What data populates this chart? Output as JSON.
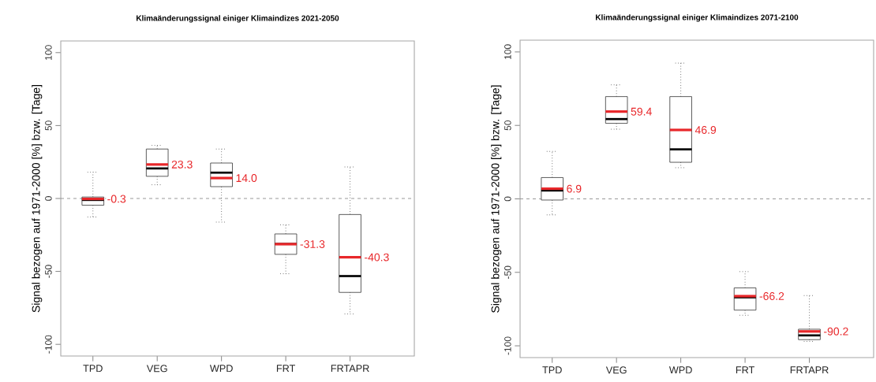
{
  "chart_data": [
    {
      "type": "box",
      "title": "Klimaänderungssignal einiger Klimaindizes 2021-2050",
      "ylabel": "Signal bezogen auf 1971-2000 [%] bzw. [Tage]",
      "categories": [
        "TPD",
        "VEG",
        "WPD",
        "FRT",
        "FRTAPR"
      ],
      "boxes": [
        {
          "low": -12.7,
          "q1": -4.6,
          "median": -1.0,
          "q3": 1.0,
          "high": 18,
          "mean": -0.3
        },
        {
          "low": 9.4,
          "q1": 15.2,
          "median": 20.6,
          "q3": 33.9,
          "high": 36.4,
          "mean": 23.3
        },
        {
          "low": -16.2,
          "q1": 8.1,
          "median": 17.7,
          "q3": 24.3,
          "high": 33.9,
          "mean": 14.0
        },
        {
          "low": -51.6,
          "q1": -38.3,
          "median": -31.2,
          "q3": -24.3,
          "high": -18.1,
          "mean": -31.3
        },
        {
          "low": -79.2,
          "q1": -64.4,
          "median": -53.2,
          "q3": -11.0,
          "high": 21.6,
          "mean": -40.3
        }
      ],
      "ylim": [
        -108,
        108
      ],
      "yticks": [
        -100,
        -50,
        0,
        50,
        100
      ],
      "ref_lines": [
        {
          "axis": "y",
          "value": 0,
          "line_style": "dashed",
          "color": "#808080"
        }
      ],
      "annotations": [
        "-0.3",
        "23.3",
        "14.0",
        "-31.3",
        "-40.3"
      ]
    },
    {
      "type": "box",
      "title": "Klimaänderungssignal einiger Klimaindizes 2071-2100",
      "ylabel": "Signal bezogen auf 1971-2000 [%] bzw. [Tage]",
      "categories": [
        "TPD",
        "VEG",
        "WPD",
        "FRT",
        "FRTAPR"
      ],
      "boxes": [
        {
          "low": -10.9,
          "q1": -0.8,
          "median": 5.7,
          "q3": 14.5,
          "high": 32.3,
          "mean": 6.9
        },
        {
          "low": 47.4,
          "q1": 51.4,
          "median": 54.3,
          "q3": 69.6,
          "high": 77.6,
          "mean": 59.4
        },
        {
          "low": 21.2,
          "q1": 24.9,
          "median": 33.7,
          "q3": 69.6,
          "high": 92.4,
          "mean": 46.9
        },
        {
          "low": -79.2,
          "q1": -75.7,
          "median": -67.0,
          "q3": -60.6,
          "high": -49.5,
          "mean": -66.2
        },
        {
          "low": -97.0,
          "q1": -95.8,
          "median": -92.9,
          "q3": -88.7,
          "high": -65.8,
          "mean": -90.2
        }
      ],
      "ylim": [
        -108,
        108
      ],
      "yticks": [
        -100,
        -50,
        0,
        50,
        100
      ],
      "ref_lines": [
        {
          "axis": "y",
          "value": 0,
          "line_style": "dashed",
          "color": "#808080"
        }
      ],
      "annotations": [
        "6.9",
        "59.4",
        "46.9",
        "-66.2",
        "-90.2"
      ]
    }
  ]
}
